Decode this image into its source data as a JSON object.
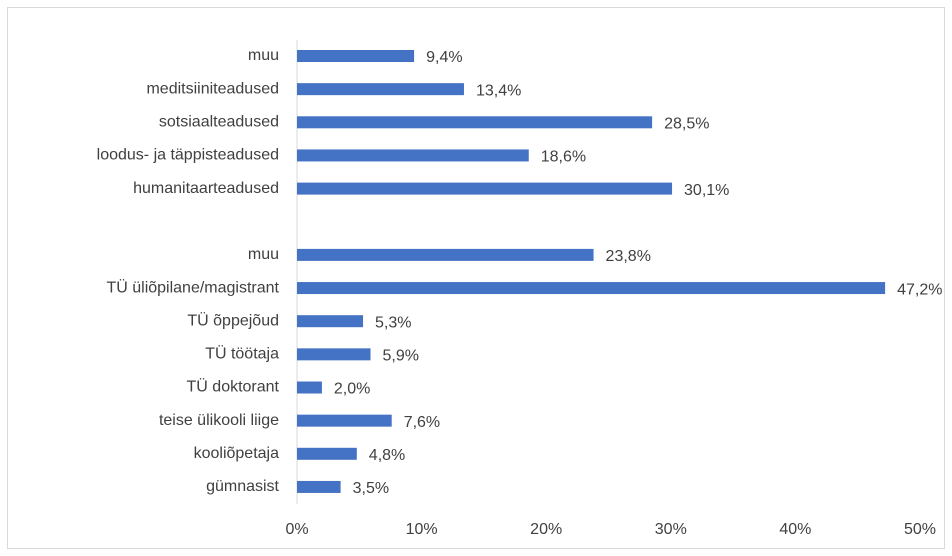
{
  "chart_data": {
    "type": "bar",
    "orientation": "horizontal",
    "color": "#4472c4",
    "categories": [
      "muu",
      "meditsiiniteadused",
      "sotsiaalteadused",
      "loodus- ja täppisteadused",
      "humanitaarteadused",
      null,
      "muu",
      "TÜ üliõpilane/magistrant",
      "TÜ õppejõud",
      "TÜ töötaja",
      "TÜ doktorant",
      "teise ülikooli liige",
      "kooliõpetaja",
      "gümnasist"
    ],
    "values": [
      9.4,
      13.4,
      28.5,
      18.6,
      30.1,
      null,
      23.8,
      47.2,
      5.3,
      5.9,
      2.0,
      7.6,
      4.8,
      3.5
    ],
    "value_labels": [
      "9,4%",
      "13,4%",
      "28,5%",
      "18,6%",
      "30,1%",
      null,
      "23,8%",
      "47,2%",
      "5,3%",
      "5,9%",
      "2,0%",
      "7,6%",
      "4,8%",
      "3,5%"
    ],
    "xlim": [
      0,
      50
    ],
    "xticks": [
      {
        "value": 0,
        "label": "0%"
      },
      {
        "value": 10,
        "label": "10%"
      },
      {
        "value": 20,
        "label": "20%"
      },
      {
        "value": 30,
        "label": "30%"
      },
      {
        "value": 40,
        "label": "40%"
      },
      {
        "value": 50,
        "label": "50%"
      }
    ],
    "grid": false
  }
}
